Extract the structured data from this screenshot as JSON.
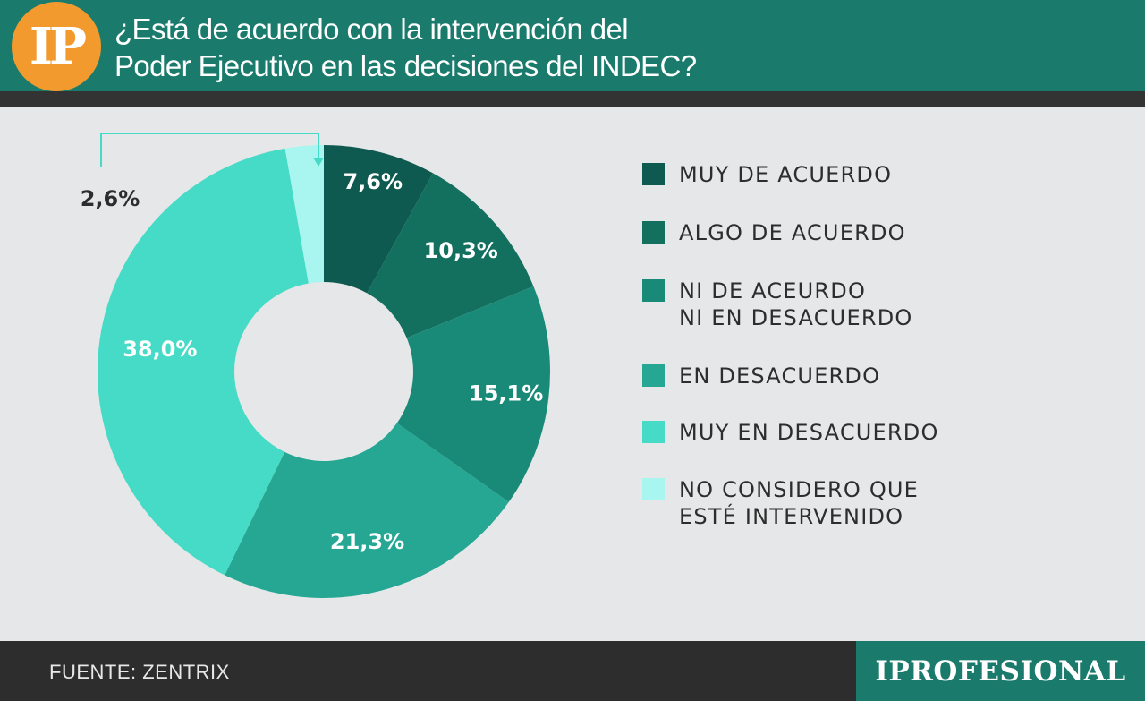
{
  "header": {
    "logo": "IP",
    "title_line1": "¿Está de acuerdo con la intervención del",
    "title_line2": "Poder Ejecutivo en las decisiones del INDEC?"
  },
  "footer": {
    "source": "FUENTE: ZENTRIX",
    "brand": "IPROFESIONAL"
  },
  "colors": {
    "header_bg": "#1a7b6c",
    "logo_bg": "#f39a2e",
    "background": "#e6e7e8",
    "footer_bg": "#2d2d2d"
  },
  "chart_data": {
    "type": "pie",
    "variant": "donut",
    "categories": [
      "MUY DE ACUERDO",
      "ALGO DE ACUERDO",
      "NI DE ACEURDO\nNI EN DESACUERDO",
      "EN DESACUERDO",
      "MUY EN DESACUERDO",
      "NO CONSIDERO QUE\nESTÉ INTERVENIDO"
    ],
    "values": [
      7.6,
      10.3,
      15.1,
      21.3,
      38.0,
      2.6
    ],
    "labels": [
      "7,6%",
      "10,3%",
      "15,1%",
      "21,3%",
      "38,0%",
      "2,6%"
    ],
    "colors": [
      "#0e5a50",
      "#13705f",
      "#1a8a78",
      "#25a794",
      "#45dbc6",
      "#a9f6f0"
    ],
    "legend_position": "right"
  }
}
